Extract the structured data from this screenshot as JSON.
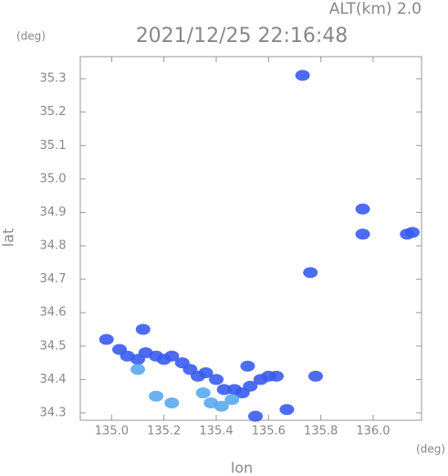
{
  "chart_data": {
    "type": "radar-echo",
    "title": "2021/12/25 22:16:48",
    "altitude_label": "ALT(km) 2.0",
    "y_unit": "(deg)",
    "x_unit": "(deg)",
    "x_label": "lon",
    "y_label": "lat",
    "xlim": [
      134.88,
      136.185
    ],
    "ylim": [
      34.278,
      35.366
    ],
    "xticks": [
      {
        "value": 135.0,
        "label": "135.0"
      },
      {
        "value": 135.2,
        "label": "135.2"
      },
      {
        "value": 135.4,
        "label": "135.4"
      },
      {
        "value": 135.6,
        "label": "135.6"
      },
      {
        "value": 135.8,
        "label": "135.8"
      },
      {
        "value": 136.0,
        "label": "136.0"
      }
    ],
    "yticks": [
      {
        "value": 34.3,
        "label": "34.3"
      },
      {
        "value": 34.4,
        "label": "34.4"
      },
      {
        "value": 34.5,
        "label": "34.5"
      },
      {
        "value": 34.6,
        "label": "34.6"
      },
      {
        "value": 34.7,
        "label": "34.7"
      },
      {
        "value": 34.8,
        "label": "34.8"
      },
      {
        "value": 34.9,
        "label": "34.9"
      },
      {
        "value": 35.0,
        "label": "35.0"
      },
      {
        "value": 35.1,
        "label": "35.1"
      },
      {
        "value": 35.2,
        "label": "35.2"
      },
      {
        "value": 35.3,
        "label": "35.3"
      }
    ],
    "series": [
      {
        "color": "#3a5cf0",
        "x": [
          134.98,
          135.03,
          135.06,
          135.1,
          135.13,
          135.17,
          135.2,
          135.23,
          135.27,
          135.3,
          135.33,
          135.36,
          135.4,
          135.43,
          135.47,
          135.5,
          135.53,
          135.57,
          135.6,
          135.63,
          135.52,
          135.12,
          135.73,
          135.96,
          135.96,
          136.13,
          136.15,
          135.78,
          135.76,
          135.67,
          135.55
        ],
        "values": [
          34.52,
          34.49,
          34.47,
          34.46,
          34.48,
          34.47,
          34.46,
          34.47,
          34.45,
          34.43,
          34.41,
          34.42,
          34.4,
          34.37,
          34.37,
          34.36,
          34.38,
          34.4,
          34.41,
          34.41,
          34.44,
          34.55,
          35.31,
          34.91,
          34.835,
          34.835,
          34.84,
          34.41,
          34.72,
          34.31,
          34.29
        ]
      },
      {
        "color": "#5aa8ee",
        "x": [
          135.17,
          135.23,
          135.38,
          135.42,
          135.35,
          135.1,
          135.46
        ],
        "values": [
          34.35,
          34.33,
          34.33,
          34.32,
          34.36,
          34.43,
          34.34
        ]
      }
    ]
  }
}
